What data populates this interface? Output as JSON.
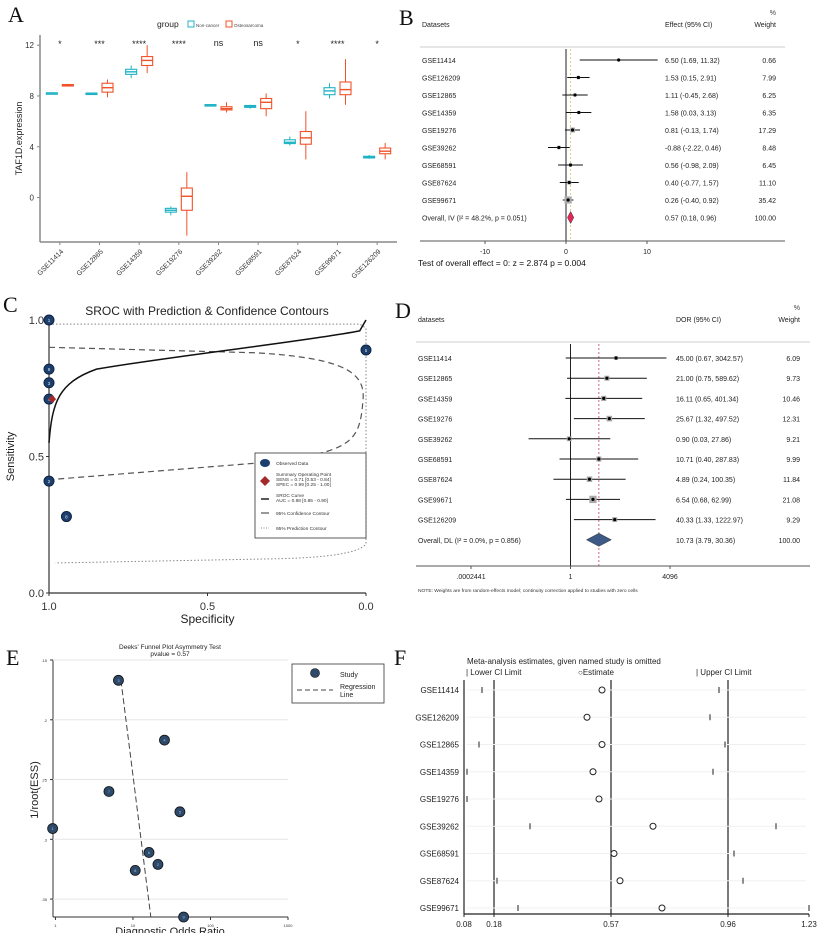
{
  "panel_labels": {
    "A": "A",
    "B": "B",
    "C": "C",
    "D": "D",
    "E": "E",
    "F": "F"
  },
  "chart_data": [
    {
      "id": "A",
      "type": "box",
      "title": "",
      "legend": {
        "title": "group",
        "entries": [
          {
            "name": "Non-cancer",
            "color": "#1fb3c4"
          },
          {
            "name": "Osteosarcoma",
            "color": "#f0522a"
          }
        ],
        "placement": "top"
      },
      "ylabel": "TAF1D.expression",
      "xlabel": "",
      "ylim": [
        -3.5,
        12.8
      ],
      "yticks": [
        0,
        4,
        8,
        12
      ],
      "categories": [
        "GSE11414",
        "GSE12865",
        "GSE14359",
        "GSE19276",
        "GSE39262",
        "GSE68591",
        "GSE87624",
        "GSE99671",
        "GSE126209"
      ],
      "significance": [
        "*",
        "***",
        "****",
        "****",
        "ns",
        "ns",
        "*",
        "****",
        "*"
      ],
      "series": [
        {
          "name": "Non-cancer",
          "color": "#1fb3c4",
          "boxes": [
            {
              "min": 8.15,
              "q1": 8.2,
              "median": 8.22,
              "q3": 8.25,
              "max": 8.3
            },
            {
              "min": 8.15,
              "q1": 8.18,
              "median": 8.2,
              "q3": 8.23,
              "max": 8.27
            },
            {
              "min": 9.4,
              "q1": 9.7,
              "median": 9.9,
              "q3": 10.1,
              "max": 10.4
            },
            {
              "min": -1.4,
              "q1": -1.15,
              "median": -1.0,
              "q3": -0.85,
              "max": -0.7
            },
            {
              "min": 7.2,
              "q1": 7.25,
              "median": 7.28,
              "q3": 7.32,
              "max": 7.35
            },
            {
              "min": 7.0,
              "q1": 7.1,
              "median": 7.18,
              "q3": 7.25,
              "max": 7.3
            },
            {
              "min": 4.1,
              "q1": 4.25,
              "median": 4.35,
              "q3": 4.55,
              "max": 4.8
            },
            {
              "min": 7.8,
              "q1": 8.1,
              "median": 8.4,
              "q3": 8.65,
              "max": 9.0
            },
            {
              "min": 3.05,
              "q1": 3.12,
              "median": 3.18,
              "q3": 3.25,
              "max": 3.35
            }
          ]
        },
        {
          "name": "Osteosarcoma",
          "color": "#f0522a",
          "boxes": [
            {
              "min": 8.75,
              "q1": 8.8,
              "median": 8.85,
              "q3": 8.9,
              "max": 8.95
            },
            {
              "min": 7.9,
              "q1": 8.3,
              "median": 8.65,
              "q3": 9.0,
              "max": 9.3
            },
            {
              "min": 9.8,
              "q1": 10.4,
              "median": 10.8,
              "q3": 11.1,
              "max": 12.0
            },
            {
              "min": -3.0,
              "q1": -1.0,
              "median": 0.1,
              "q3": 0.75,
              "max": 2.0
            },
            {
              "min": 6.7,
              "q1": 6.9,
              "median": 7.0,
              "q3": 7.15,
              "max": 7.5
            },
            {
              "min": 6.4,
              "q1": 7.0,
              "median": 7.5,
              "q3": 7.8,
              "max": 8.2
            },
            {
              "min": 3.0,
              "q1": 4.2,
              "median": 4.7,
              "q3": 5.2,
              "max": 6.8
            },
            {
              "min": 7.3,
              "q1": 8.1,
              "median": 8.5,
              "q3": 9.1,
              "max": 10.9
            },
            {
              "min": 3.0,
              "q1": 3.45,
              "median": 3.65,
              "q3": 3.9,
              "max": 4.3
            }
          ]
        }
      ]
    },
    {
      "id": "B",
      "type": "forest",
      "header": {
        "study": "Datasets",
        "effect": "Effect (95% CI)",
        "weight_pct": "%",
        "weight": "Weight"
      },
      "xlim": [
        -17,
        17
      ],
      "xticks": [
        -10,
        0,
        10
      ],
      "null_value": 0,
      "studies": [
        {
          "name": "GSE11414",
          "est": 6.5,
          "lo": 1.69,
          "hi": 11.32,
          "label": "6.50 (1.69, 11.32)",
          "weight": "0.66"
        },
        {
          "name": "GSE126209",
          "est": 1.53,
          "lo": 0.15,
          "hi": 2.91,
          "label": "1.53 (0.15, 2.91)",
          "weight": "7.99"
        },
        {
          "name": "GSE12865",
          "est": 1.11,
          "lo": -0.45,
          "hi": 2.68,
          "label": "1.11 (-0.45, 2.68)",
          "weight": "6.25"
        },
        {
          "name": "GSE14359",
          "est": 1.58,
          "lo": 0.03,
          "hi": 3.13,
          "label": "1.58 (0.03, 3.13)",
          "weight": "6.35"
        },
        {
          "name": "GSE19276",
          "est": 0.81,
          "lo": -0.13,
          "hi": 1.74,
          "label": "0.81 (-0.13, 1.74)",
          "weight": "17.29"
        },
        {
          "name": "GSE39262",
          "est": -0.88,
          "lo": -2.22,
          "hi": 0.46,
          "label": "-0.88 (-2.22, 0.46)",
          "weight": "8.48"
        },
        {
          "name": "GSE68591",
          "est": 0.56,
          "lo": -0.98,
          "hi": 2.09,
          "label": "0.56 (-0.98, 2.09)",
          "weight": "6.45"
        },
        {
          "name": "GSE87624",
          "est": 0.4,
          "lo": -0.77,
          "hi": 1.57,
          "label": "0.40 (-0.77, 1.57)",
          "weight": "11.10"
        },
        {
          "name": "GSE99671",
          "est": 0.26,
          "lo": -0.4,
          "hi": 0.92,
          "label": "0.26 (-0.40, 0.92)",
          "weight": "35.42"
        }
      ],
      "overall": {
        "name": "Overall, IV (I² = 48.2%, p = 0.051)",
        "est": 0.57,
        "lo": 0.18,
        "hi": 0.96,
        "label": "0.57 (0.18, 0.96)",
        "weight": "100.00",
        "color": "#e8245a"
      },
      "footer": "Test of overall effect = 0:  z =   2.874  p = 0.004"
    },
    {
      "id": "C",
      "type": "sroc",
      "title": "SROC with Prediction & Confidence Contours",
      "xlabel": "Specificity",
      "ylabel": "Sensitivity",
      "xlim": [
        1.0,
        0.0
      ],
      "ylim": [
        0.0,
        1.0
      ],
      "xticks": [
        "1.0",
        "0.5",
        "0.0"
      ],
      "yticks": [
        "0.0",
        "0.5",
        "1.0"
      ],
      "observed": [
        {
          "id": "1",
          "spec": 1.0,
          "sens": 1.0
        },
        {
          "id": "9",
          "spec": 1.0,
          "sens": 0.82
        },
        {
          "id": "3",
          "spec": 1.0,
          "sens": 0.77
        },
        {
          "id": "4",
          "spec": 1.0,
          "sens": 0.71
        },
        {
          "id": "5",
          "spec": 0.0,
          "sens": 0.89
        },
        {
          "id": "2",
          "spec": 1.0,
          "sens": 0.41
        },
        {
          "id": "8",
          "spec": 0.945,
          "sens": 0.28
        }
      ],
      "summary_point": {
        "spec": 0.99,
        "sens": 0.71,
        "color": "#a32a2a"
      },
      "legend": {
        "placement": "bottom-right",
        "items": [
          "Observed Data",
          "Summary Operating Point",
          "SENS = 0.71 [0.53 - 0.84]",
          "SPEC = 0.99 [0.25 - 1.00]",
          "SROC Curve",
          "AUC = 0.88 [0.85 - 0.90]",
          "95% Confidence Contour",
          "95% Prediction Contour"
        ]
      },
      "marker_color": "#1d3f6e"
    },
    {
      "id": "D",
      "type": "forest",
      "scale": "log2",
      "header": {
        "study": "datasets",
        "effect": "DOR (95% CI)",
        "weight_pct": "%",
        "weight": "Weight"
      },
      "xticks": [
        {
          "v": 0.0002441,
          "label": ".0002441"
        },
        {
          "v": 1,
          "label": "1"
        },
        {
          "v": 4096,
          "label": "4096"
        }
      ],
      "xlim_log2": [
        -16.5,
        23.5
      ],
      "null_value": 1,
      "studies": [
        {
          "name": "GSE11414",
          "est": 45.0,
          "lo": 0.67,
          "hi": 3042.57,
          "label": "45.00 (0.67, 3042.57)",
          "weight": "6.09"
        },
        {
          "name": "GSE12865",
          "est": 21.0,
          "lo": 0.75,
          "hi": 589.62,
          "label": "21.00 (0.75, 589.62)",
          "weight": "9.73"
        },
        {
          "name": "GSE14359",
          "est": 16.11,
          "lo": 0.65,
          "hi": 401.34,
          "label": "16.11 (0.65, 401.34)",
          "weight": "10.46"
        },
        {
          "name": "GSE19276",
          "est": 25.67,
          "lo": 1.32,
          "hi": 497.52,
          "label": "25.67 (1.32, 497.52)",
          "weight": "12.31"
        },
        {
          "name": "GSE39262",
          "est": 0.9,
          "lo": 0.03,
          "hi": 27.86,
          "label": "0.90 (0.03, 27.86)",
          "weight": "9.21"
        },
        {
          "name": "GSE68591",
          "est": 10.71,
          "lo": 0.4,
          "hi": 287.83,
          "label": "10.71 (0.40, 287.83)",
          "weight": "9.99"
        },
        {
          "name": "GSE87624",
          "est": 4.89,
          "lo": 0.24,
          "hi": 100.35,
          "label": "4.89 (0.24, 100.35)",
          "weight": "11.84"
        },
        {
          "name": "GSE99671",
          "est": 6.54,
          "lo": 0.68,
          "hi": 62.99,
          "label": "6.54 (0.68, 62.99)",
          "weight": "21.08"
        },
        {
          "name": "GSE126209",
          "est": 40.33,
          "lo": 1.33,
          "hi": 1222.97,
          "label": "40.33 (1.33, 1222.97)",
          "weight": "9.29"
        }
      ],
      "overall": {
        "name": "Overall, DL (I² = 0.0%, p = 0.856)",
        "est": 10.73,
        "lo": 3.79,
        "hi": 30.36,
        "label": "10.73 (3.79, 30.36)",
        "weight": "100.00",
        "color": "#3d5a86"
      },
      "note": "NOTE: Weights are from random-effects model; continuity correction applied to studies with zero cells"
    },
    {
      "id": "E",
      "type": "scatter",
      "title": "Deeks' Funnel Plot Asymmetry Test",
      "subtitle": "pvalue =   0.57",
      "xlabel": "Diagnostic Odds Ratio",
      "ylabel": "1/root(ESS)",
      "xscale": "log10",
      "xlim": [
        0.93,
        1000
      ],
      "xticks": [
        "1",
        "10",
        "100",
        "1000"
      ],
      "ylim": [
        0.15,
        0.365
      ],
      "yticks": [
        ".15",
        ".2",
        ".25",
        ".3",
        ".35"
      ],
      "points": [
        {
          "id": "3",
          "x": 6.5,
          "y": 0.167
        },
        {
          "id": "4",
          "x": 25.5,
          "y": 0.217
        },
        {
          "id": "7",
          "x": 4.9,
          "y": 0.26
        },
        {
          "id": "5",
          "x": 40.3,
          "y": 0.277
        },
        {
          "id": "1",
          "x": 0.92,
          "y": 0.291
        },
        {
          "id": "6",
          "x": 16.1,
          "y": 0.311
        },
        {
          "id": "2",
          "x": 21.0,
          "y": 0.321
        },
        {
          "id": "8",
          "x": 10.7,
          "y": 0.326
        },
        {
          "id": "9",
          "x": 45.0,
          "y": 0.365
        }
      ],
      "regression_line": [
        {
          "x": 7.0,
          "y": 0.167
        },
        {
          "x": 17.0,
          "y": 0.365
        }
      ],
      "legend": {
        "items": [
          "Study",
          "Regression Line"
        ],
        "placement": "right"
      },
      "marker_color": "#2d4a6b"
    },
    {
      "id": "F",
      "type": "influence",
      "title": "Meta-analysis estimates, given named study is omitted",
      "legend": [
        "Lower CI Limit",
        "Estimate",
        "Upper CI Limit"
      ],
      "xlim": [
        0.08,
        1.23
      ],
      "xticks": [
        "0.08",
        "0.18",
        "0.57",
        "0.96",
        "1.23"
      ],
      "ref_lines": [
        0.18,
        0.57,
        0.96
      ],
      "studies": [
        {
          "name": "GSE11414",
          "lo": 0.14,
          "est": 0.54,
          "hi": 0.93
        },
        {
          "name": "GSE126209",
          "lo": null,
          "est": 0.49,
          "hi": 0.9
        },
        {
          "name": "GSE12865",
          "lo": 0.13,
          "est": 0.54,
          "hi": 0.95
        },
        {
          "name": "GSE14359",
          "lo": 0.09,
          "est": 0.51,
          "hi": 0.91
        },
        {
          "name": "GSE19276",
          "lo": 0.09,
          "est": 0.53,
          "hi": 0.96
        },
        {
          "name": "GSE39262",
          "lo": 0.3,
          "est": 0.71,
          "hi": 1.12
        },
        {
          "name": "GSE68591",
          "lo": 0.18,
          "est": 0.58,
          "hi": 0.98
        },
        {
          "name": "GSE87624",
          "lo": 0.19,
          "est": 0.6,
          "hi": 1.01
        },
        {
          "name": "GSE99671",
          "lo": 0.26,
          "est": 0.74,
          "hi": 1.23
        }
      ]
    }
  ]
}
